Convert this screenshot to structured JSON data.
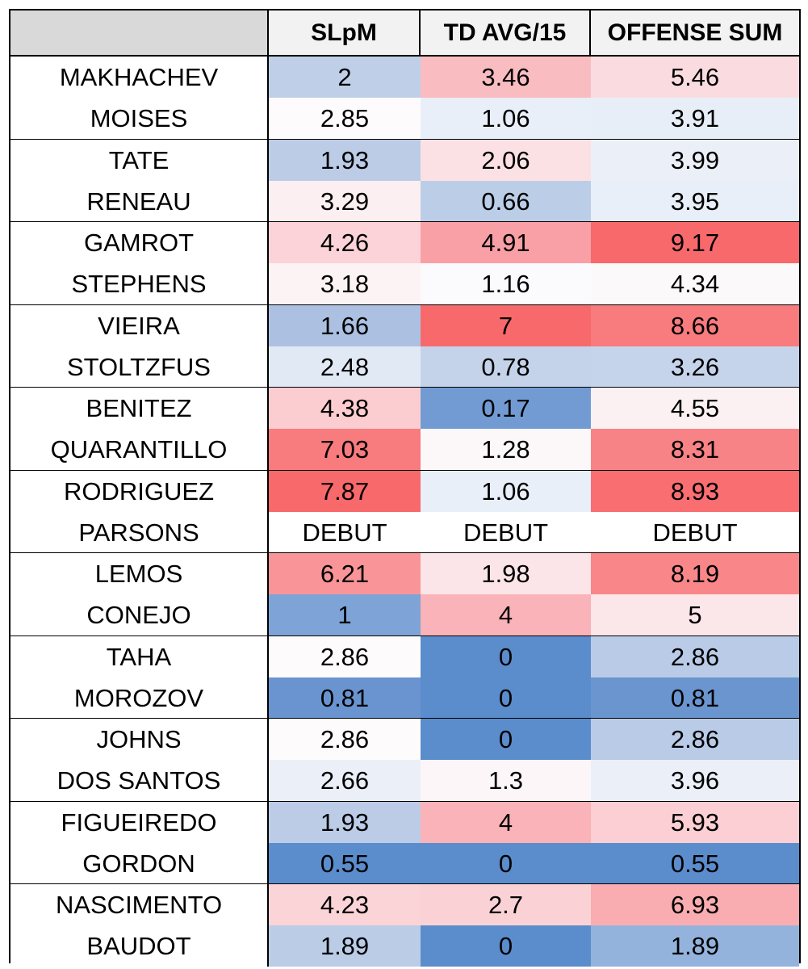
{
  "chart_data": {
    "type": "table",
    "columns": [
      "",
      "SLpM",
      "TD AVG/15",
      "OFFENSE SUM"
    ],
    "rows": [
      {
        "name": "MAKHACHEV",
        "slpm": "2",
        "td": "3.46",
        "sum": "5.46",
        "colors": [
          "#bfcfe8",
          "#f9bcc1",
          "#fadce0"
        ]
      },
      {
        "name": "MOISES",
        "slpm": "2.85",
        "td": "1.06",
        "sum": "3.91",
        "colors": [
          "#fdfbfc",
          "#e9eff8",
          "#e8eef7"
        ]
      },
      {
        "name": "TATE",
        "slpm": "1.93",
        "td": "2.06",
        "sum": "3.99",
        "colors": [
          "#bccce7",
          "#fbe1e4",
          "#ebf0f8"
        ]
      },
      {
        "name": "RENEAU",
        "slpm": "3.29",
        "td": "0.66",
        "sum": "3.95",
        "colors": [
          "#fbeff1",
          "#bccde7",
          "#e9eff8"
        ]
      },
      {
        "name": "GAMROT",
        "slpm": "4.26",
        "td": "4.91",
        "sum": "9.17",
        "colors": [
          "#fbd3d8",
          "#f9a0a6",
          "#f8696b"
        ]
      },
      {
        "name": "STEPHENS",
        "slpm": "3.18",
        "td": "1.16",
        "sum": "4.34",
        "colors": [
          "#fcf3f5",
          "#fbfbfe",
          "#fcf9fa"
        ]
      },
      {
        "name": "VIEIRA",
        "slpm": "1.66",
        "td": "7",
        "sum": "8.66",
        "colors": [
          "#acc1e2",
          "#f8696b",
          "#f87b7e"
        ]
      },
      {
        "name": "STOLTZFUS",
        "slpm": "2.48",
        "td": "0.78",
        "sum": "3.26",
        "colors": [
          "#e1e9f5",
          "#c4d3ea",
          "#c6d4eb"
        ]
      },
      {
        "name": "BENITEZ",
        "slpm": "4.38",
        "td": "0.17",
        "sum": "4.55",
        "colors": [
          "#fbcdd1",
          "#729bd3",
          "#fbf1f3"
        ]
      },
      {
        "name": "QUARANTILLO",
        "slpm": "7.03",
        "td": "1.28",
        "sum": "8.31",
        "colors": [
          "#f87b7e",
          "#fcf8f9",
          "#f88386"
        ]
      },
      {
        "name": "RODRIGUEZ",
        "slpm": "7.87",
        "td": "1.06",
        "sum": "8.93",
        "colors": [
          "#f8696b",
          "#e9eff8",
          "#f86e71"
        ]
      },
      {
        "name": "PARSONS",
        "slpm": "DEBUT",
        "td": "DEBUT",
        "sum": "DEBUT",
        "colors": [
          "#ffffff",
          "#ffffff",
          "#ffffff"
        ]
      },
      {
        "name": "LEMOS",
        "slpm": "6.21",
        "td": "1.98",
        "sum": "8.19",
        "colors": [
          "#f99598",
          "#fbe5e8",
          "#f98789"
        ]
      },
      {
        "name": "CONEJO",
        "slpm": "1",
        "td": "4",
        "sum": "5",
        "colors": [
          "#7ea4d7",
          "#fab3b8",
          "#fbe6e9"
        ]
      },
      {
        "name": "TAHA",
        "slpm": "2.86",
        "td": "0",
        "sum": "2.86",
        "colors": [
          "#fdfbfc",
          "#5b8ccc",
          "#b9cbe6"
        ]
      },
      {
        "name": "MOROZOV",
        "slpm": "0.81",
        "td": "0",
        "sum": "0.81",
        "colors": [
          "#6994cf",
          "#5b8ccc",
          "#6a95cf"
        ]
      },
      {
        "name": "JOHNS",
        "slpm": "2.86",
        "td": "0",
        "sum": "2.86",
        "colors": [
          "#fdfbfc",
          "#5b8ccc",
          "#b9cbe6"
        ]
      },
      {
        "name": "DOS SANTOS",
        "slpm": "2.66",
        "td": "1.3",
        "sum": "3.96",
        "colors": [
          "#ebf0f8",
          "#fcf6f8",
          "#eaeff8"
        ]
      },
      {
        "name": "FIGUEIREDO",
        "slpm": "1.93",
        "td": "4",
        "sum": "5.93",
        "colors": [
          "#bccce7",
          "#fab3b8",
          "#fbcfd3"
        ]
      },
      {
        "name": "GORDON",
        "slpm": "0.55",
        "td": "0",
        "sum": "0.55",
        "colors": [
          "#5b8ccc",
          "#5b8ccc",
          "#5b8ccc"
        ]
      },
      {
        "name": "NASCIMENTO",
        "slpm": "4.23",
        "td": "2.7",
        "sum": "6.93",
        "colors": [
          "#fbd4d8",
          "#fad2d6",
          "#faadb1"
        ]
      },
      {
        "name": "BAUDOT",
        "slpm": "1.89",
        "td": "0",
        "sum": "1.89",
        "colors": [
          "#baccE6",
          "#5b8ccc",
          "#93b3dd"
        ]
      }
    ]
  }
}
